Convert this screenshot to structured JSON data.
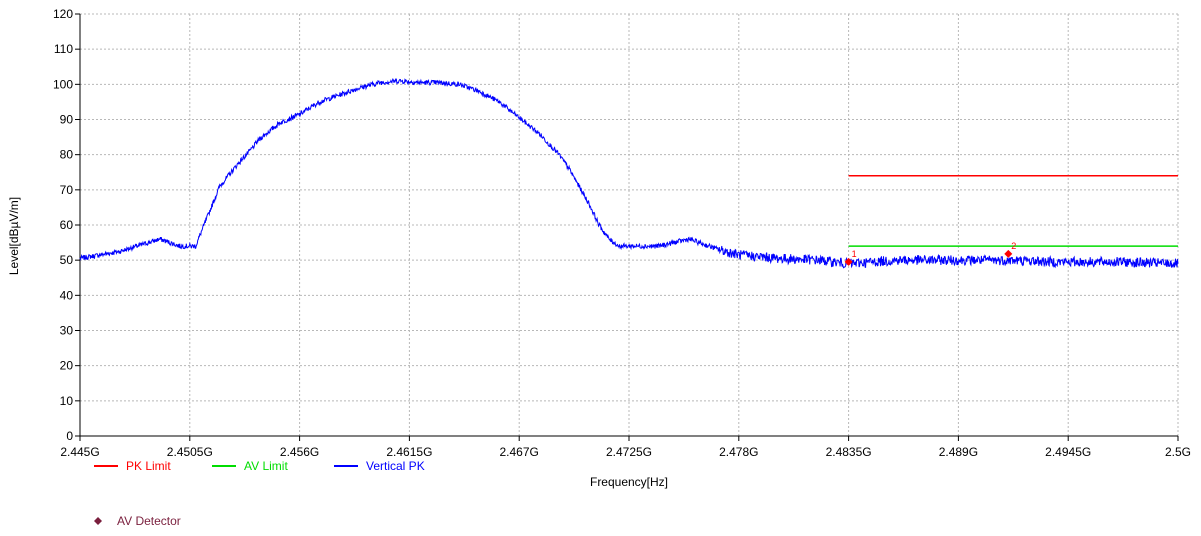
{
  "chart_data": {
    "type": "line",
    "xlabel": "Frequency[Hz]",
    "ylabel": "Level[dBµV/m]",
    "x_range_ghz": [
      2.445,
      2.5
    ],
    "ylim": [
      0,
      120
    ],
    "x_tick_values_ghz": [
      2.445,
      2.4505,
      2.456,
      2.4615,
      2.467,
      2.4725,
      2.478,
      2.4835,
      2.489,
      2.4945,
      2.5
    ],
    "x_tick_labels": [
      "2.445G",
      "2.4505G",
      "2.456G",
      "2.4615G",
      "2.467G",
      "2.4725G",
      "2.478G",
      "2.4835G",
      "2.489G",
      "2.4945G",
      "2.5G"
    ],
    "y_ticks": [
      0,
      10,
      20,
      30,
      40,
      50,
      60,
      70,
      80,
      90,
      100,
      110,
      120
    ],
    "grid": true,
    "legend_placement": "bottom-left",
    "series": [
      {
        "name": "PK Limit",
        "color": "#ff0000",
        "x_ghz": [
          2.4835,
          2.5
        ],
        "values": [
          74,
          74
        ]
      },
      {
        "name": "AV Limit",
        "color": "#00dd00",
        "x_ghz": [
          2.4835,
          2.5
        ],
        "values": [
          54,
          54
        ]
      },
      {
        "name": "Vertical PK",
        "color": "#0000ff",
        "x_ghz": [
          2.445,
          2.447,
          2.449,
          2.4495,
          2.45,
          2.4505,
          2.4508,
          2.451,
          2.4515,
          2.452,
          2.453,
          2.4535,
          2.454,
          2.455,
          2.456,
          2.457,
          2.458,
          2.459,
          2.46,
          2.461,
          2.462,
          2.463,
          2.464,
          2.465,
          2.466,
          2.467,
          2.468,
          2.469,
          2.4695,
          2.47,
          2.4705,
          2.471,
          2.4715,
          2.472,
          2.4725,
          2.474,
          2.4755,
          2.477,
          2.478,
          2.48,
          2.482,
          2.4835,
          2.486,
          2.489,
          2.4915,
          2.494,
          2.497,
          2.5
        ],
        "values": [
          50.5,
          52.5,
          56,
          55,
          54,
          54,
          54,
          57,
          64,
          71,
          78,
          81,
          84.5,
          89,
          91.5,
          95,
          97,
          99,
          100.5,
          101,
          100.5,
          100.5,
          100,
          98,
          95,
          90.5,
          86,
          80,
          76,
          71,
          66,
          60,
          56,
          54,
          54,
          54,
          56,
          53,
          51.5,
          50.5,
          50,
          49,
          50,
          50,
          50,
          49.5,
          49.5,
          49
        ]
      },
      {
        "name": "AV Detector",
        "color": "#7a1f3d",
        "markers": [
          {
            "label": "1",
            "x_ghz": 2.4835,
            "value": 49.5
          },
          {
            "label": "2",
            "x_ghz": 2.4915,
            "value": 51.8
          }
        ]
      }
    ]
  }
}
